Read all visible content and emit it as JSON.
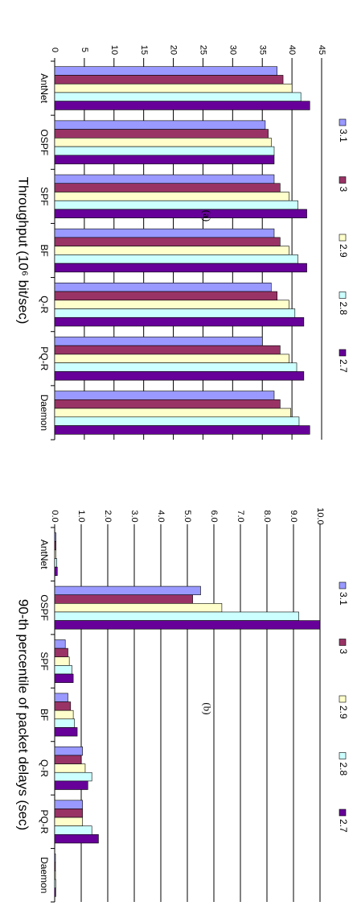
{
  "chart_data": [
    {
      "type": "bar",
      "orientation": "horizontal",
      "title": "Throughput (10⁶ bit/sec)",
      "panel_label": "(a)",
      "categories": [
        "AntNet",
        "OSPF",
        "SPF",
        "BF",
        "Q-R",
        "PQ-R",
        "Daemon"
      ],
      "xlim": [
        0,
        45
      ],
      "ticks": [
        "0",
        "5",
        "10",
        "15",
        "20",
        "25",
        "30",
        "35",
        "40",
        "45"
      ],
      "grid": true,
      "legend_position": "right",
      "series": [
        {
          "name": "3.1",
          "color": "#9999ff",
          "values": [
            37.5,
            35.5,
            37.0,
            37.0,
            36.5,
            35.0,
            37.0
          ]
        },
        {
          "name": "3",
          "color": "#993366",
          "values": [
            38.5,
            36.0,
            38.0,
            38.0,
            37.5,
            38.0,
            38.0
          ]
        },
        {
          "name": "2.9",
          "color": "#ffffcc",
          "values": [
            40.0,
            36.5,
            39.5,
            39.5,
            39.5,
            39.5,
            39.8
          ]
        },
        {
          "name": "2.8",
          "color": "#ccffff",
          "values": [
            41.5,
            37.0,
            41.0,
            41.0,
            40.5,
            40.8,
            41.2
          ]
        },
        {
          "name": "2.7",
          "color": "#660099",
          "values": [
            43.0,
            37.0,
            42.5,
            42.5,
            42.0,
            42.0,
            43.0
          ]
        }
      ]
    },
    {
      "type": "bar",
      "orientation": "horizontal",
      "title": "90-th percentile of packet delays (sec)",
      "panel_label": "(b)",
      "categories": [
        "AntNet",
        "OSPF",
        "SPF",
        "BF",
        "Q-R",
        "PQ-R",
        "Daemon"
      ],
      "xlim": [
        0,
        10
      ],
      "ticks": [
        "0.0",
        "1.0",
        "2.0",
        "3.0",
        "4.0",
        "5.0",
        "6.0",
        "7.0",
        "8.0",
        "9.0",
        "10.0"
      ],
      "grid": true,
      "legend_position": "right",
      "series": [
        {
          "name": "3.1",
          "color": "#9999ff",
          "values": [
            0.05,
            5.5,
            0.4,
            0.5,
            1.05,
            1.05,
            0.03
          ]
        },
        {
          "name": "3",
          "color": "#993366",
          "values": [
            0.05,
            5.2,
            0.5,
            0.6,
            1.0,
            1.05,
            0.03
          ]
        },
        {
          "name": "2.9",
          "color": "#ffffcc",
          "values": [
            0.05,
            6.3,
            0.55,
            0.7,
            1.15,
            1.05,
            0.03
          ]
        },
        {
          "name": "2.8",
          "color": "#ccffff",
          "values": [
            0.08,
            9.2,
            0.65,
            0.75,
            1.4,
            1.4,
            0.04
          ]
        },
        {
          "name": "2.7",
          "color": "#660099",
          "values": [
            0.1,
            10.0,
            0.7,
            0.85,
            1.25,
            1.65,
            0.04
          ]
        }
      ]
    }
  ]
}
